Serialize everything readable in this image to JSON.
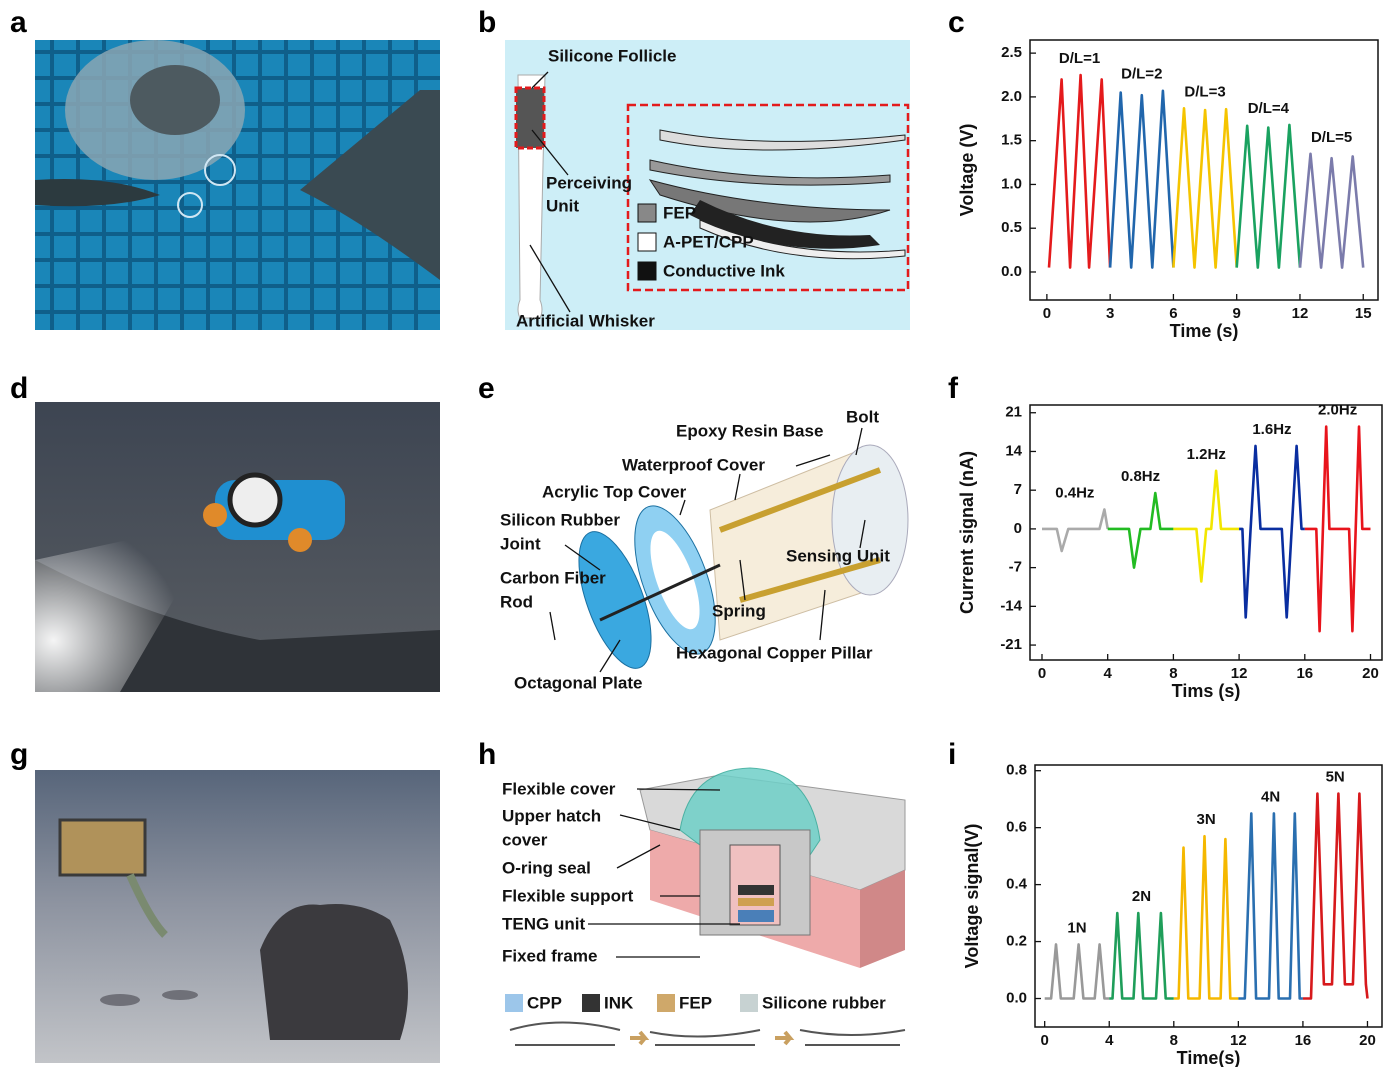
{
  "panel_labels": [
    "a",
    "b",
    "c",
    "d",
    "e",
    "f",
    "g",
    "h",
    "i"
  ],
  "panel_b": {
    "silicone_follicle": "Silicone Follicle",
    "perceiving_unit": [
      "Perceiving",
      "Unit"
    ],
    "legend": [
      "FEP",
      "A-PET/CPP",
      "Conductive Ink"
    ],
    "artificial_whisker": "Artificial Whisker"
  },
  "panel_e": {
    "epoxy_resin_base": "Epoxy Resin Base",
    "bolt": "Bolt",
    "waterproof_cover": "Waterproof Cover",
    "acrylic_top_cover": "Acrylic Top Cover",
    "silicon_rubber_joint": [
      "Silicon Rubber",
      "Joint"
    ],
    "carbon_fiber_rod": [
      "Carbon Fiber",
      "Rod"
    ],
    "sensing_unit": "Sensing Unit",
    "spring": "Spring",
    "hexagonal_copper_pillar": "Hexagonal Copper Pillar",
    "octagonal_plate": "Octagonal Plate"
  },
  "panel_h": {
    "flexible_cover": "Flexible cover",
    "upper_hatch_cover": [
      "Upper hatch",
      "cover"
    ],
    "o_ring_seal": "O-ring seal",
    "flexible_support": "Flexible support",
    "teng_unit": "TENG unit",
    "fixed_frame": "Fixed frame",
    "legend": [
      "CPP",
      "INK",
      "FEP",
      "Silicone rubber"
    ]
  },
  "chart_data": [
    {
      "type": "line",
      "xlabel": "Time (s)",
      "ylabel": "Voltage (V)",
      "xlim": [
        -0.8,
        15.7
      ],
      "ylim": [
        -0.32,
        2.65
      ],
      "xticks": [
        0,
        3,
        6,
        9,
        12,
        15
      ],
      "yticks": [
        {
          "value": 0,
          "label": "0.0"
        },
        0.5,
        {
          "value": 1,
          "label": "1.0"
        },
        1.5,
        {
          "value": 2,
          "label": "2.0"
        },
        2.5
      ],
      "series": [
        {
          "name": "D/L=1",
          "color": "#e41a1c",
          "x": [
            0.1,
            0.7,
            1.1,
            1.6,
            2.0,
            2.6,
            3.0
          ],
          "values": [
            0.05,
            2.2,
            0.05,
            2.25,
            0.05,
            2.2,
            0.05
          ]
        },
        {
          "name": "D/L=2",
          "color": "#2166ac",
          "x": [
            3.0,
            3.5,
            4.0,
            4.5,
            5.0,
            5.5,
            6.0
          ],
          "values": [
            0.05,
            2.05,
            0.05,
            2.02,
            0.05,
            2.07,
            0.05
          ]
        },
        {
          "name": "D/L=3",
          "color": "#f5c400",
          "x": [
            6.0,
            6.5,
            7.0,
            7.5,
            8.0,
            8.5,
            9.0
          ],
          "values": [
            0.05,
            1.87,
            0.05,
            1.85,
            0.05,
            1.86,
            0.05
          ]
        },
        {
          "name": "D/L=4",
          "color": "#1aa260",
          "x": [
            9.0,
            9.5,
            10.0,
            10.5,
            11.0,
            11.5,
            12.0
          ],
          "values": [
            0.05,
            1.67,
            0.05,
            1.65,
            0.05,
            1.68,
            0.05
          ]
        },
        {
          "name": "D/L=5",
          "color": "#7b7bab",
          "x": [
            12.0,
            12.5,
            13.0,
            13.5,
            14.0,
            14.5,
            15.0
          ],
          "values": [
            0.05,
            1.35,
            0.05,
            1.3,
            0.05,
            1.32,
            0.05
          ]
        }
      ]
    },
    {
      "type": "line",
      "xlabel": "Tims (s)",
      "ylabel": "Current signal (nA)",
      "xlim": [
        -0.73,
        20.7
      ],
      "ylim": [
        -23.7,
        22.4
      ],
      "xticks": [
        0,
        4,
        8,
        12,
        16,
        20
      ],
      "yticks": [
        -21,
        -14,
        -7,
        0,
        7,
        14,
        21
      ],
      "series": [
        {
          "name": "0.4Hz",
          "color": "#aaaaaa",
          "x": [
            0,
            0.9,
            1.2,
            1.6,
            3.5,
            3.8,
            4.0
          ],
          "values": [
            0,
            0,
            -4,
            0,
            0,
            3.5,
            0
          ]
        },
        {
          "name": "0.8Hz",
          "color": "#22bb22",
          "x": [
            4.0,
            5.3,
            5.6,
            6.0,
            6.6,
            6.9,
            7.2,
            8.0
          ],
          "values": [
            0,
            0,
            -7,
            0,
            0,
            6.5,
            0,
            0
          ]
        },
        {
          "name": "1.2Hz",
          "color": "#f2e600",
          "x": [
            8.0,
            9.4,
            9.7,
            10.0,
            10.3,
            10.6,
            10.9,
            12.0
          ],
          "values": [
            0,
            0,
            -9.5,
            0,
            0,
            10.5,
            0,
            0
          ]
        },
        {
          "name": "1.6Hz",
          "color": "#0a2ea0",
          "x": [
            12.0,
            12.2,
            12.4,
            12.7,
            13.0,
            13.3,
            14.6,
            14.9,
            15.2,
            15.5,
            15.8,
            16.0
          ],
          "values": [
            0,
            0,
            -16,
            0,
            15,
            0,
            0,
            -16,
            0,
            15,
            0,
            0
          ]
        },
        {
          "name": "2.0Hz",
          "color": "#e8141c",
          "x": [
            16.0,
            16.7,
            16.9,
            17.1,
            17.3,
            17.5,
            18.7,
            18.9,
            19.1,
            19.3,
            19.5,
            20.0
          ],
          "values": [
            0,
            0,
            -18.5,
            0,
            18.5,
            0,
            0,
            -18.5,
            0,
            18.5,
            0,
            0
          ]
        }
      ]
    },
    {
      "type": "line",
      "xlabel": "Time(s)",
      "ylabel": "Voltage signal(V)",
      "xlim": [
        -0.6,
        20.9
      ],
      "ylim": [
        -0.1,
        0.82
      ],
      "xticks": [
        0,
        4,
        8,
        12,
        16,
        20
      ],
      "yticks": [
        {
          "value": 0,
          "label": "0.0"
        },
        0.2,
        0.4,
        0.6,
        0.8
      ],
      "series": [
        {
          "name": "1N",
          "color": "#999999",
          "x": [
            0,
            0.4,
            0.7,
            1.0,
            1.8,
            2.1,
            2.4,
            3.1,
            3.4,
            3.7,
            4.0
          ],
          "values": [
            0,
            0,
            0.19,
            0,
            0,
            0.19,
            0,
            0,
            0.19,
            0,
            0
          ]
        },
        {
          "name": "2N",
          "color": "#1f9e5a",
          "x": [
            4.0,
            4.2,
            4.5,
            4.8,
            5.5,
            5.8,
            6.1,
            6.9,
            7.2,
            7.5,
            8.0
          ],
          "values": [
            0,
            0,
            0.3,
            0,
            0,
            0.3,
            0,
            0,
            0.3,
            0,
            0
          ]
        },
        {
          "name": "3N",
          "color": "#f5b800",
          "x": [
            8.0,
            8.3,
            8.6,
            8.9,
            9.6,
            9.9,
            10.2,
            10.9,
            11.2,
            11.5,
            12.0
          ],
          "values": [
            0,
            0,
            0.53,
            0,
            0,
            0.57,
            0,
            0,
            0.56,
            0,
            0
          ]
        },
        {
          "name": "4N",
          "color": "#2a6fb0",
          "x": [
            12.0,
            12.4,
            12.8,
            13.1,
            13.9,
            14.2,
            14.5,
            15.2,
            15.5,
            15.8,
            16.0
          ],
          "values": [
            0,
            0,
            0.65,
            0,
            0,
            0.65,
            0,
            0,
            0.65,
            0,
            0
          ]
        },
        {
          "name": "5N",
          "color": "#d7191c",
          "x": [
            16.0,
            16.5,
            16.9,
            17.3,
            17.8,
            18.2,
            18.6,
            19.1,
            19.5,
            19.9,
            20.0
          ],
          "values": [
            0,
            0,
            0.72,
            0.05,
            0.05,
            0.72,
            0.05,
            0.05,
            0.72,
            0.05,
            0
          ]
        }
      ]
    }
  ]
}
